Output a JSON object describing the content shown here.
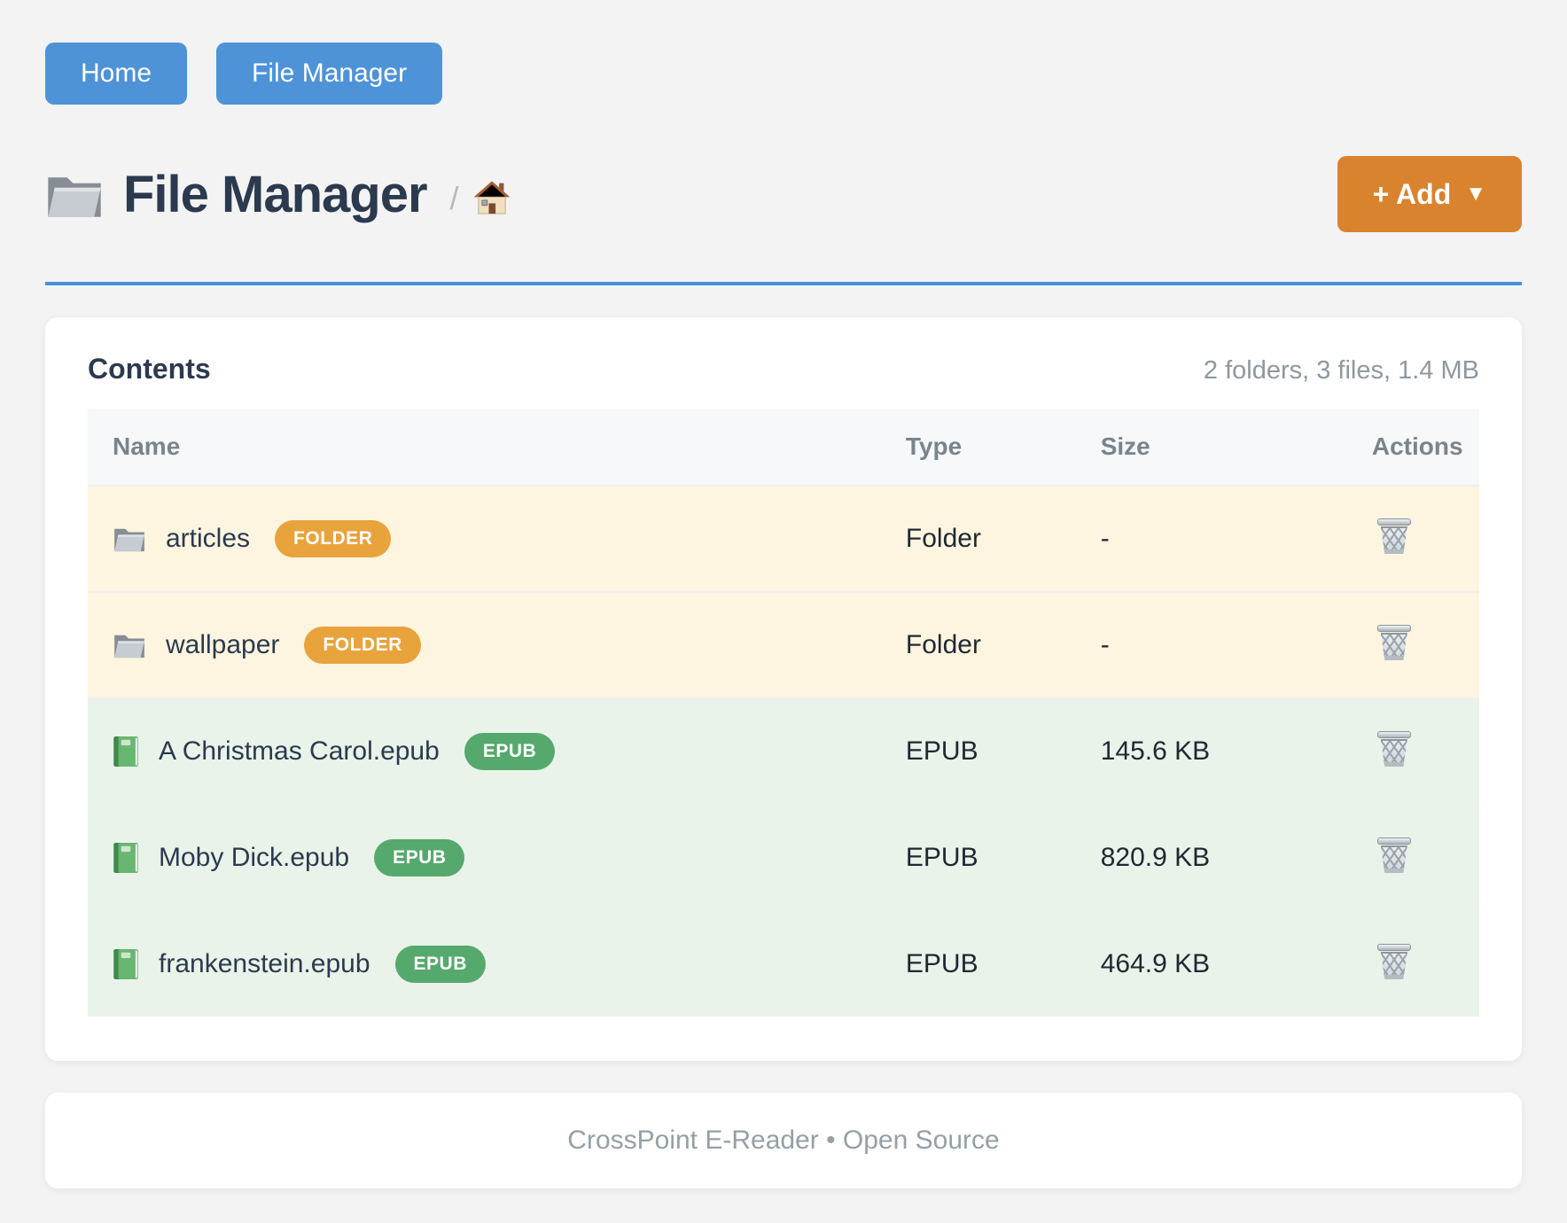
{
  "nav": {
    "buttons": [
      {
        "label": "Home"
      },
      {
        "label": "File Manager"
      }
    ]
  },
  "header": {
    "title": "File Manager",
    "title_icon": "folder-icon",
    "breadcrumb_separator": "/",
    "breadcrumb_home_icon": "home-icon",
    "add_button": {
      "label": "+ Add",
      "caret": "▼"
    }
  },
  "content": {
    "heading": "Contents",
    "summary": "2 folders, 3 files, 1.4 MB",
    "table": {
      "columns": [
        "Name",
        "Type",
        "Size",
        "Actions"
      ],
      "rows": [
        {
          "name": "articles",
          "kind": "folder",
          "badge": "FOLDER",
          "type": "Folder",
          "size": "-"
        },
        {
          "name": "wallpaper",
          "kind": "folder",
          "badge": "FOLDER",
          "type": "Folder",
          "size": "-"
        },
        {
          "name": "A Christmas Carol.epub",
          "kind": "epub",
          "badge": "EPUB",
          "type": "EPUB",
          "size": "145.6 KB"
        },
        {
          "name": "Moby Dick.epub",
          "kind": "epub",
          "badge": "EPUB",
          "type": "EPUB",
          "size": "820.9 KB"
        },
        {
          "name": "frankenstein.epub",
          "kind": "epub",
          "badge": "EPUB",
          "type": "EPUB",
          "size": "464.9 KB"
        }
      ]
    }
  },
  "footer": {
    "text": "CrossPoint E-Reader • Open Source"
  },
  "colors": {
    "nav_blue": "#4e93d7",
    "hr_blue": "#4a90d9",
    "add_orange": "#d9832e",
    "folder_badge": "#e8a33c",
    "epub_badge": "#56a96c",
    "folder_row_bg": "#fdf5e0",
    "epub_row_bg": "#e9f3e9"
  }
}
